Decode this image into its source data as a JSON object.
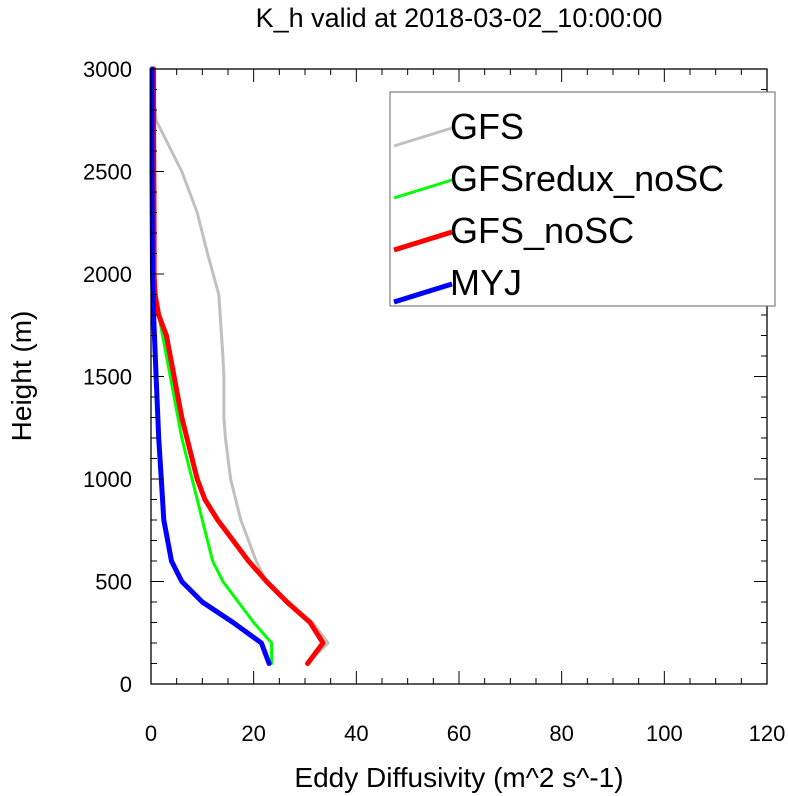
{
  "chart_data": {
    "type": "line",
    "title": "K_h valid at 2018-03-02_10:00:00",
    "xlabel": "Eddy Diffusivity (m^2 s^-1)",
    "ylabel": "Height (m)",
    "xlim": [
      0,
      120
    ],
    "ylim": [
      0,
      3000
    ],
    "xticks": [
      "0",
      "20",
      "40",
      "60",
      "80",
      "100",
      "120"
    ],
    "yticks": [
      "0",
      "500",
      "1000",
      "1500",
      "2000",
      "2500",
      "3000"
    ],
    "grid": false,
    "legend_position": "top-right",
    "series": [
      {
        "name": "GFS",
        "color": "#c0c0c0",
        "points": [
          [
            30.5,
            100
          ],
          [
            34.5,
            200
          ],
          [
            31.5,
            300
          ],
          [
            26.5,
            400
          ],
          [
            22.5,
            500
          ],
          [
            20.5,
            600
          ],
          [
            17.5,
            800
          ],
          [
            16.5,
            900
          ],
          [
            15.5,
            1000
          ],
          [
            14.5,
            1200
          ],
          [
            14.2,
            1300
          ],
          [
            14.2,
            1500
          ],
          [
            14,
            1600
          ],
          [
            13.2,
            1900
          ],
          [
            11,
            2100
          ],
          [
            9,
            2300
          ],
          [
            6,
            2500
          ],
          [
            3,
            2650
          ],
          [
            1,
            2750
          ],
          [
            0.4,
            2900
          ],
          [
            0.2,
            3000
          ]
        ]
      },
      {
        "name": "GFSredux_noSC",
        "color": "#00ff00",
        "points": [
          [
            23.5,
            100
          ],
          [
            23.5,
            200
          ],
          [
            20,
            300
          ],
          [
            17,
            400
          ],
          [
            14,
            500
          ],
          [
            12,
            600
          ],
          [
            11,
            700
          ],
          [
            10,
            800
          ],
          [
            9,
            900
          ],
          [
            8,
            1000
          ],
          [
            7,
            1100
          ],
          [
            6,
            1200
          ],
          [
            4.5,
            1400
          ],
          [
            3,
            1600
          ],
          [
            1.5,
            1800
          ],
          [
            0.8,
            1900
          ],
          [
            0.7,
            2000
          ],
          [
            0.6,
            2100
          ],
          [
            0.6,
            2500
          ],
          [
            0.5,
            2900
          ],
          [
            0.5,
            3000
          ]
        ]
      },
      {
        "name": "GFS_noSC",
        "color": "#ff0000",
        "points": [
          [
            30.5,
            100
          ],
          [
            33.5,
            200
          ],
          [
            31,
            300
          ],
          [
            26.5,
            400
          ],
          [
            22.5,
            500
          ],
          [
            19,
            600
          ],
          [
            16,
            700
          ],
          [
            13,
            800
          ],
          [
            10.5,
            900
          ],
          [
            9,
            1000
          ],
          [
            7,
            1200
          ],
          [
            6,
            1300
          ],
          [
            4.5,
            1500
          ],
          [
            3,
            1700
          ],
          [
            1.5,
            1800
          ],
          [
            0.8,
            1900
          ],
          [
            0.6,
            2000
          ],
          [
            0.6,
            2200
          ],
          [
            0.5,
            2800
          ],
          [
            0.5,
            3000
          ]
        ]
      },
      {
        "name": "MYJ",
        "color": "#0000ff",
        "points": [
          [
            23,
            100
          ],
          [
            21.5,
            200
          ],
          [
            16,
            300
          ],
          [
            10,
            400
          ],
          [
            6,
            500
          ],
          [
            4,
            600
          ],
          [
            2.5,
            800
          ],
          [
            2,
            1000
          ],
          [
            1.5,
            1200
          ],
          [
            1,
            1500
          ],
          [
            0.5,
            1800
          ],
          [
            0.3,
            2000
          ],
          [
            0.2,
            2500
          ],
          [
            0.2,
            3000
          ]
        ]
      }
    ]
  }
}
